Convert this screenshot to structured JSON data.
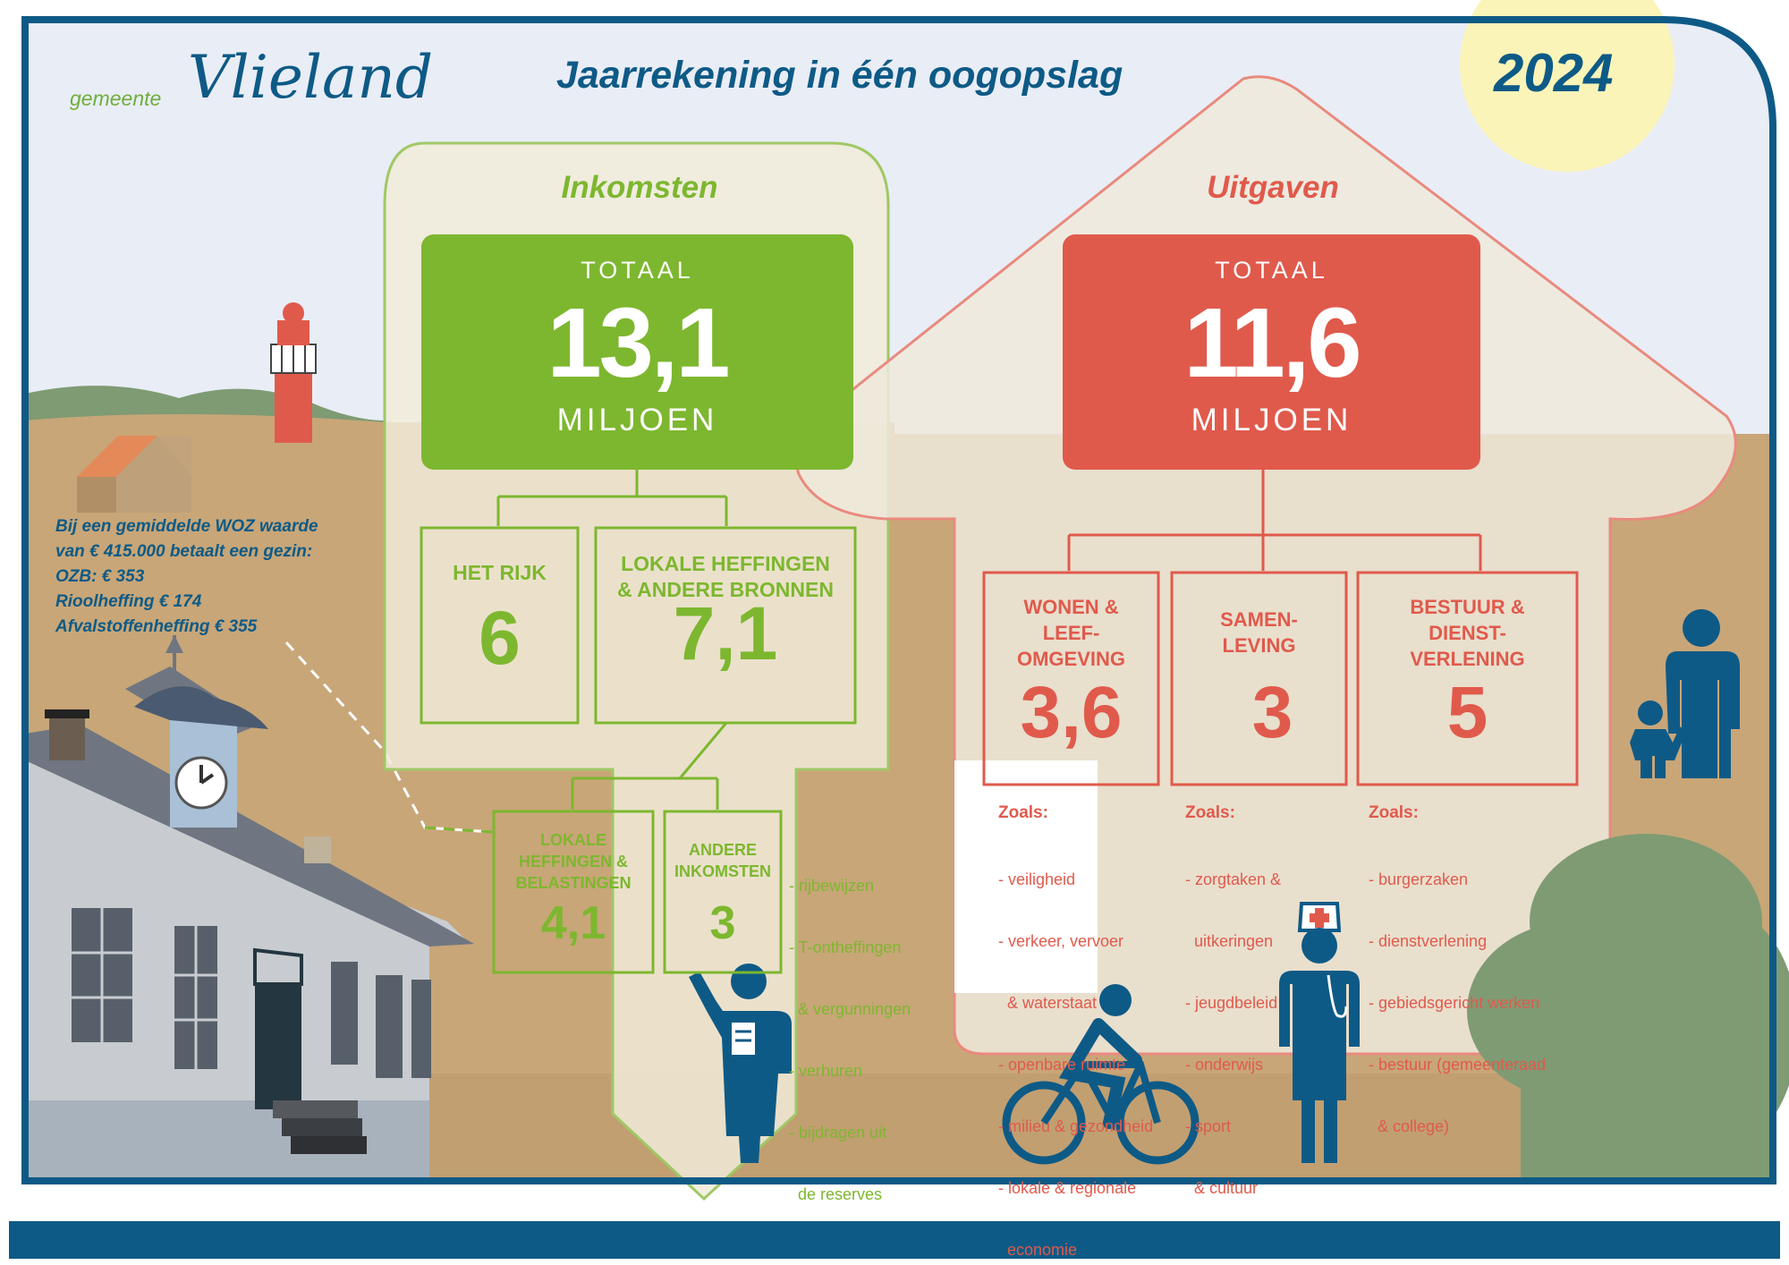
{
  "header": {
    "logo_prefix": "gemeente",
    "logo_name": "Vlieland",
    "title": "Jaarrekening in één oogopslag",
    "year": "2024"
  },
  "woz_note": {
    "line1": "Bij een gemiddelde WOZ waarde",
    "line2": "van € 415.000 betaalt een gezin:",
    "line3": "OZB: € 353",
    "line4": "Rioolheffing € 174",
    "line5": "Afvalstoffenheffing € 355"
  },
  "inkomsten": {
    "title": "Inkomsten",
    "total_label": "TOTAAL",
    "total_value": "13,1",
    "total_unit": "MILJOEN",
    "het_rijk": {
      "label": "HET RIJK",
      "value": "6"
    },
    "lokale_bronnen": {
      "label_line1": "LOKALE HEFFINGEN",
      "label_line2": "& ANDERE BRONNEN",
      "value": "7,1"
    },
    "lokale_belastingen": {
      "label_line1": "LOKALE",
      "label_line2": "HEFFINGEN &",
      "label_line3": "BELASTINGEN",
      "value": "4,1"
    },
    "andere_inkomsten": {
      "label_line1": "ANDERE",
      "label_line2": "INKOMSTEN",
      "value": "3"
    },
    "andere_items": [
      "- rijbewijzen",
      "- T-ontheffingen",
      "  & vergunningen",
      "- verhuren",
      "- bijdragen uit",
      "  de reserves"
    ]
  },
  "uitgaven": {
    "title": "Uitgaven",
    "total_label": "TOTAAL",
    "total_value": "11,6",
    "total_unit": "MILJOEN",
    "wonen": {
      "label_line1": "WONEN &",
      "label_line2": "LEEF-",
      "label_line3": "OMGEVING",
      "value": "3,6",
      "zoals": "Zoals:",
      "items": [
        "- veiligheid",
        "- verkeer, vervoer",
        "  & waterstaat",
        "- openbare ruimte",
        "- milieu & gezondheid",
        "- lokale & regionale",
        "  economie"
      ]
    },
    "samenleving": {
      "label_line1": "SAMEN-",
      "label_line2": "LEVING",
      "value": "3",
      "zoals": "Zoals:",
      "items": [
        "- zorgtaken &",
        "  uitkeringen",
        "- jeugdbeleid",
        "- onderwijs",
        "- sport",
        "  & cultuur"
      ]
    },
    "bestuur": {
      "label_line1": "BESTUUR &",
      "label_line2": "DIENST-",
      "label_line3": "VERLENING",
      "value": "5",
      "zoals": "Zoals:",
      "items": [
        "- burgerzaken",
        "- dienstverlening",
        "- gebiedsgericht werken",
        "- bestuur (gemeenteraad",
        "  & college)"
      ]
    }
  },
  "colors": {
    "green": "#7db72f",
    "red": "#e05a4c",
    "navy": "#0e5a86",
    "sand": "#c8a678",
    "sky": "#e9edf6",
    "sun": "#fbf4b8"
  }
}
